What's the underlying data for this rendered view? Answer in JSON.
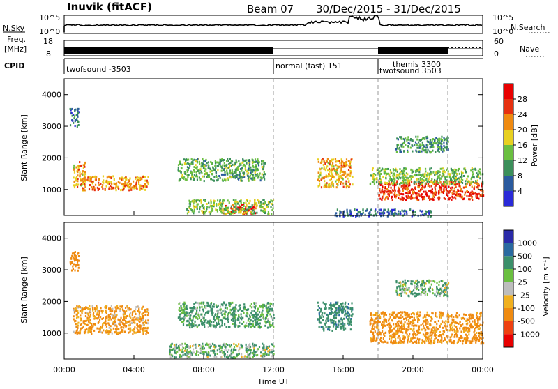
{
  "header": {
    "station": "Inuvik (fitACF)",
    "beam": "Beam 07",
    "dates": "30/Dec/2015 - 31/Dec/2015"
  },
  "noise_panel": {
    "left_label": "N.Sky",
    "right_label": "N.Search",
    "ticks": [
      "10^5",
      "10^0"
    ]
  },
  "freq_panel": {
    "left_label_1": "Freq.",
    "left_label_2": "[MHz]",
    "right_label": "Nave",
    "left_ticks": [
      "18",
      "8"
    ],
    "right_ticks": [
      "60",
      "0"
    ]
  },
  "cpid_panel": {
    "label": "CPID",
    "segments": [
      {
        "text": "twofsound -3503"
      },
      {
        "text": "normal (fast) 151"
      },
      {
        "text": "themis 3300"
      },
      {
        "text": "twofsound 3503"
      }
    ]
  },
  "axes": {
    "ylabel": "Slant Range [km]",
    "xlabel": "Time UT",
    "x_ticks": [
      "00:00",
      "04:00",
      "08:00",
      "12:00",
      "16:00",
      "20:00",
      "00:00"
    ],
    "y_ticks": [
      "1000",
      "2000",
      "3000",
      "4000"
    ],
    "dashed_hours": [
      12,
      18,
      22
    ]
  },
  "power_bar": {
    "label": "Power [dB]",
    "ticks": [
      "4",
      "8",
      "12",
      "16",
      "20",
      "24",
      "28"
    ],
    "colors": [
      "#2a2ad8",
      "#2a5a9e",
      "#3b8f5a",
      "#6abf40",
      "#e8d020",
      "#ef8a10",
      "#e63010",
      "#e80000"
    ]
  },
  "velocity_bar": {
    "label": "Velocity [m s⁻¹]",
    "ticks": [
      "1000",
      "500",
      "100",
      "25",
      "-25",
      "-100",
      "-500",
      "-1000"
    ],
    "colors": [
      "#2a2aa8",
      "#2a6aa0",
      "#3b8f6a",
      "#6abf40",
      "#bdbdbd",
      "#f0b020",
      "#ef8a10",
      "#ee4010",
      "#e80000"
    ]
  },
  "chart_data": {
    "type": "heatmap",
    "x_range_hours": [
      0,
      24
    ],
    "y_range_km": [
      180,
      4500
    ],
    "power_panel": {
      "blobs": [
        {
          "t": [
            0.5,
            1.2
          ],
          "r": [
            1100,
            1900
          ],
          "dB": 22
        },
        {
          "t": [
            1.0,
            4.8
          ],
          "r": [
            1000,
            1450
          ],
          "dB": 24
        },
        {
          "t": [
            0.3,
            0.8
          ],
          "r": [
            3000,
            3600
          ],
          "dB": 10
        },
        {
          "t": [
            6.5,
            11.5
          ],
          "r": [
            1300,
            2000
          ],
          "dB": 14
        },
        {
          "t": [
            9.0,
            11.0
          ],
          "r": [
            250,
            550
          ],
          "dB": 30
        },
        {
          "t": [
            7.0,
            12.0
          ],
          "r": [
            250,
            700
          ],
          "dB": 16
        },
        {
          "t": [
            14.5,
            16.5
          ],
          "r": [
            1100,
            2000
          ],
          "dB": 22
        },
        {
          "t": [
            15.5,
            21.0
          ],
          "r": [
            180,
            400
          ],
          "dB": 8
        },
        {
          "t": [
            18.0,
            24.0
          ],
          "r": [
            700,
            1300
          ],
          "dB": 28
        },
        {
          "t": [
            17.5,
            24.0
          ],
          "r": [
            1200,
            1700
          ],
          "dB": 16
        },
        {
          "t": [
            19.0,
            22.0
          ],
          "r": [
            2200,
            2700
          ],
          "dB": 12
        }
      ]
    },
    "velocity_panel": {
      "blobs": [
        {
          "t": [
            0.5,
            4.8
          ],
          "r": [
            1000,
            1900
          ],
          "v": -150
        },
        {
          "t": [
            0.3,
            0.8
          ],
          "r": [
            3000,
            3600
          ],
          "v": -300
        },
        {
          "t": [
            6.5,
            12.0
          ],
          "r": [
            1200,
            2000
          ],
          "v": 150
        },
        {
          "t": [
            6.0,
            12.0
          ],
          "r": [
            250,
            700
          ],
          "v": 100
        },
        {
          "t": [
            14.5,
            16.5
          ],
          "r": [
            1100,
            2000
          ],
          "v": 400
        },
        {
          "t": [
            17.5,
            24.0
          ],
          "r": [
            700,
            1700
          ],
          "v": -200
        },
        {
          "t": [
            19.0,
            22.0
          ],
          "r": [
            2200,
            2700
          ],
          "v": 100
        }
      ]
    }
  }
}
